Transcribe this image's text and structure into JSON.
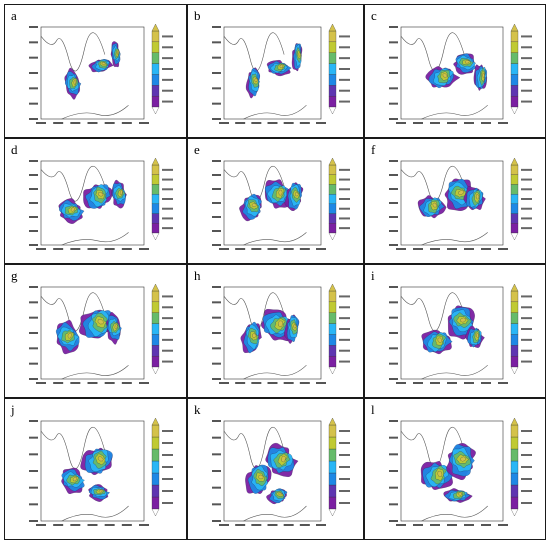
{
  "panels": [
    {
      "label": "a"
    },
    {
      "label": "b"
    },
    {
      "label": "c"
    },
    {
      "label": "d"
    },
    {
      "label": "e"
    },
    {
      "label": "f"
    },
    {
      "label": "g"
    },
    {
      "label": "h"
    },
    {
      "label": "i"
    },
    {
      "label": "j"
    },
    {
      "label": "k"
    },
    {
      "label": "l"
    }
  ],
  "colors": {
    "ramp": [
      "#7b1fa2",
      "#5e35b1",
      "#1e88e5",
      "#29b6f6",
      "#66bb6a",
      "#c0ca33",
      "#d4c24a"
    ],
    "border": "#1a1a1a",
    "coast": "#555555"
  },
  "colorbar_icon": "contour-colorbar"
}
